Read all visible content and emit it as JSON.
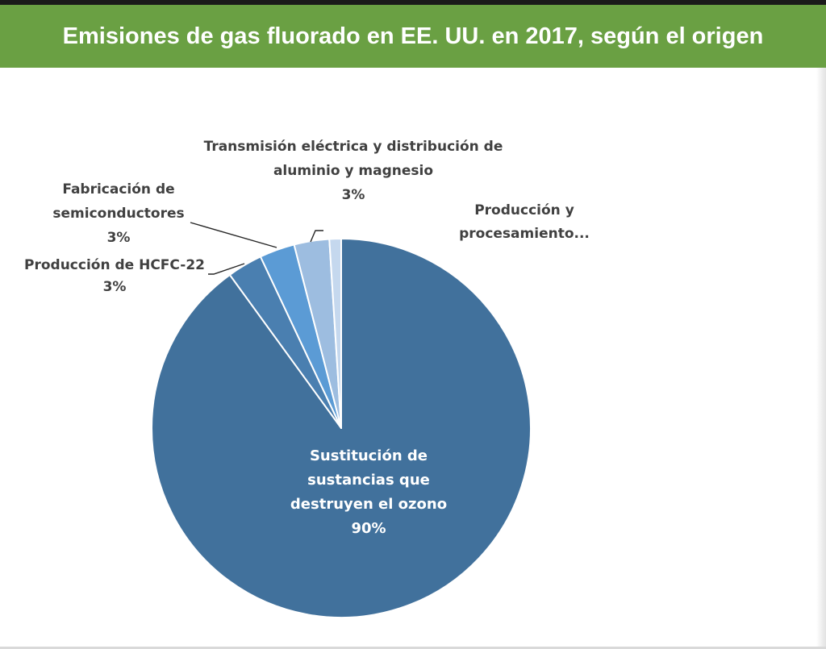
{
  "title": "Emisiones de gas fluorado en EE. UU. en 2017, según el origen",
  "colors": {
    "header": "#6aa043",
    "slices": [
      "#41719c",
      "#4a7fb0",
      "#5b9bd5",
      "#9dbde0",
      "#c5d8ee"
    ]
  },
  "chart_data": {
    "type": "pie",
    "title": "Emisiones de gas fluorado en EE. UU. en 2017, según el origen",
    "slices": [
      {
        "label": "Sustitución de sustancias que destruyen el ozono",
        "label_lines": [
          "Sustitución de",
          "sustancias que",
          "destruyen el ozono"
        ],
        "value": 90,
        "value_label": "90%",
        "color": "#41719c"
      },
      {
        "label": "Producción de HCFC-22",
        "label_lines": [
          "Producción de HCFC-22"
        ],
        "value": 3,
        "value_label": "3%",
        "color": "#4a7fb0"
      },
      {
        "label": "Fabricación de semiconductores",
        "label_lines": [
          "Fabricación de",
          "semiconductores"
        ],
        "value": 3,
        "value_label": "3%",
        "color": "#5b9bd5"
      },
      {
        "label": "Transmisión eléctrica y distribución de aluminio y magnesio",
        "label_lines": [
          "Transmisión eléctrica y distribución de",
          "aluminio y magnesio"
        ],
        "value": 3,
        "value_label": "3%",
        "color": "#9dbde0"
      },
      {
        "label": "Producción y procesamiento...",
        "label_lines": [
          "Producción y",
          "procesamiento..."
        ],
        "value": 1,
        "value_label": "",
        "color": "#c5d8ee"
      }
    ]
  }
}
